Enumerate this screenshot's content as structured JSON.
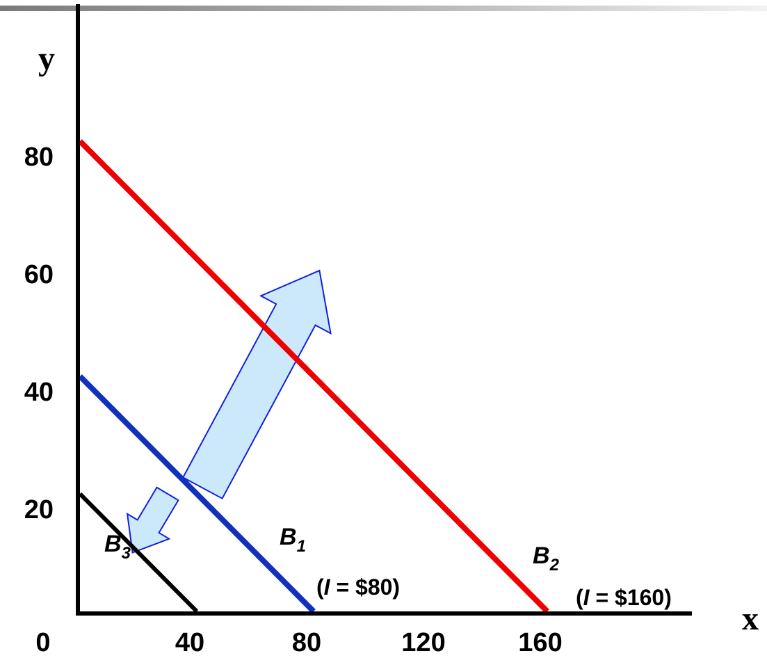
{
  "chart_data": {
    "type": "line",
    "xlabel": "x",
    "ylabel": "y",
    "x_ticks": [
      "0",
      "40",
      "80",
      "120",
      "160"
    ],
    "y_ticks": [
      "20",
      "40",
      "60",
      "80"
    ],
    "xlim": [
      0,
      200
    ],
    "ylim": [
      0,
      100
    ],
    "grid": false,
    "series": [
      {
        "name": "B1",
        "label_main": "B",
        "label_sub": "1",
        "income_prefix": "(",
        "income_var": "I",
        "income_value": " = $80)",
        "color": "#1030c0",
        "points": [
          [
            0,
            40
          ],
          [
            80,
            0
          ]
        ]
      },
      {
        "name": "B2",
        "label_main": "B",
        "label_sub": "2",
        "income_prefix": "(",
        "income_var": "I",
        "income_value": " = $160)",
        "color": "#ee0000",
        "points": [
          [
            0,
            80
          ],
          [
            160,
            0
          ]
        ]
      },
      {
        "name": "B3",
        "label_main": "B",
        "label_sub": "3",
        "color": "#000000",
        "points": [
          [
            0,
            20
          ],
          [
            40,
            0
          ]
        ]
      }
    ],
    "annotations": [
      {
        "type": "arrow",
        "meaning": "shift outward from B1 to B2",
        "from": [
          42,
          21
        ],
        "to": [
          82,
          58
        ],
        "fill": "#cce9fb",
        "stroke": "#1020e0"
      },
      {
        "type": "arrow",
        "meaning": "shift inward from B1 to B3",
        "from": [
          30,
          20
        ],
        "to": [
          18,
          10
        ],
        "fill": "#cce9fb",
        "stroke": "#1020e0"
      }
    ],
    "colors": {
      "axis": "#000000",
      "header_bar": "#808080"
    }
  }
}
